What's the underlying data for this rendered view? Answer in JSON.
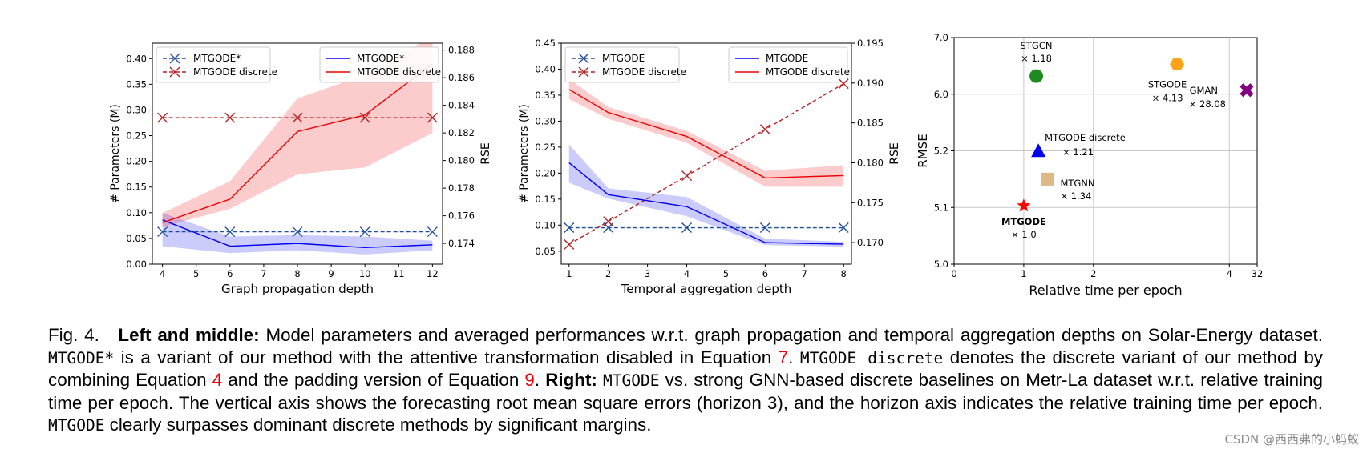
{
  "chart_data": [
    {
      "type": "line",
      "id": "left",
      "xlabel": "Graph propagation depth",
      "ylabel_left": "# Parameters (M)",
      "ylabel_right": "RSE",
      "xlim": [
        3.7,
        12.3
      ],
      "ylim_left": [
        0.0,
        0.43
      ],
      "ylim_right": [
        0.1725,
        0.1885
      ],
      "xticks": [
        4,
        5,
        6,
        7,
        8,
        9,
        10,
        11,
        12
      ],
      "yticks_left": [
        "0.00",
        "0.05",
        "0.10",
        "0.15",
        "0.20",
        "0.25",
        "0.30",
        "0.35",
        "0.40"
      ],
      "yticks_right": [
        "0.174",
        "0.176",
        "0.178",
        "0.180",
        "0.182",
        "0.184",
        "0.186",
        "0.188"
      ],
      "legend_left": [
        {
          "label": "MTGODE*",
          "color": "#1f4e9c",
          "style": "dashed-x"
        },
        {
          "label": "MTGODE discrete",
          "color": "#b22222",
          "style": "dashed-x"
        }
      ],
      "legend_right": [
        {
          "label": "MTGODE*",
          "color": "#0000ee",
          "style": "solid"
        },
        {
          "label": "MTGODE discrete",
          "color": "#ee0000",
          "style": "solid"
        }
      ],
      "series": [
        {
          "name": "MTGODE* params",
          "axis": "left",
          "color": "#1f4e9c",
          "style": "dashed-x",
          "x": [
            4,
            6,
            8,
            10,
            12
          ],
          "values": [
            0.063,
            0.063,
            0.063,
            0.063,
            0.063
          ]
        },
        {
          "name": "MTGODE discrete params",
          "axis": "left",
          "color": "#b22222",
          "style": "dashed-x",
          "x": [
            4,
            6,
            8,
            10,
            12
          ],
          "values": [
            0.285,
            0.285,
            0.285,
            0.285,
            0.285
          ]
        },
        {
          "name": "MTGODE* RSE",
          "axis": "right",
          "color": "#0000ee",
          "style": "solid",
          "x": [
            4,
            6,
            8,
            10,
            12
          ],
          "values": [
            0.1757,
            0.1738,
            0.174,
            0.1737,
            0.1739
          ],
          "lower": [
            0.1738,
            0.1733,
            0.1735,
            0.1732,
            0.1735
          ],
          "upper": [
            0.1762,
            0.1745,
            0.1746,
            0.1745,
            0.1742
          ]
        },
        {
          "name": "MTGODE discrete RSE",
          "axis": "right",
          "color": "#ee0000",
          "style": "solid",
          "x": [
            4,
            6,
            8,
            10,
            12
          ],
          "values": [
            0.1755,
            0.1772,
            0.1821,
            0.1833,
            0.187
          ],
          "lower": [
            0.1752,
            0.1765,
            0.179,
            0.1795,
            0.182
          ],
          "upper": [
            0.1762,
            0.1785,
            0.1845,
            0.1862,
            0.189
          ]
        }
      ]
    },
    {
      "type": "line",
      "id": "middle",
      "xlabel": "Temporal aggregation depth",
      "ylabel_left": "# Parameters (M)",
      "ylabel_right": "RSE",
      "xlim": [
        0.8,
        8.2
      ],
      "ylim_left": [
        0.025,
        0.45
      ],
      "ylim_right": [
        0.1673,
        0.195
      ],
      "xticks": [
        1,
        2,
        3,
        4,
        5,
        6,
        7,
        8
      ],
      "yticks_left": [
        "0.05",
        "0.10",
        "0.15",
        "0.20",
        "0.25",
        "0.30",
        "0.35",
        "0.40",
        "0.45"
      ],
      "yticks_right": [
        "0.170",
        "0.175",
        "0.180",
        "0.185",
        "0.190",
        "0.195"
      ],
      "legend_left": [
        {
          "label": "MTGODE",
          "color": "#1f4e9c",
          "style": "dashed-x"
        },
        {
          "label": "MTGODE discrete",
          "color": "#b22222",
          "style": "dashed-x"
        }
      ],
      "legend_right": [
        {
          "label": "MTGODE",
          "color": "#0000ee",
          "style": "solid"
        },
        {
          "label": "MTGODE discrete",
          "color": "#ee0000",
          "style": "solid"
        }
      ],
      "series": [
        {
          "name": "MTGODE params",
          "axis": "left",
          "color": "#1f4e9c",
          "style": "dashed-x",
          "x": [
            1,
            2,
            4,
            6,
            8
          ],
          "values": [
            0.095,
            0.095,
            0.095,
            0.095,
            0.095
          ]
        },
        {
          "name": "MTGODE discrete params",
          "axis": "left",
          "color": "#b22222",
          "style": "dashed-x",
          "x": [
            1,
            2,
            4,
            6,
            8
          ],
          "values": [
            0.063,
            0.107,
            0.195,
            0.284,
            0.372
          ]
        },
        {
          "name": "MTGODE RSE",
          "axis": "right",
          "color": "#0000ee",
          "style": "solid",
          "x": [
            1,
            2,
            4,
            6,
            8
          ],
          "values": [
            0.18,
            0.176,
            0.1745,
            0.17,
            0.1698
          ],
          "lower": [
            0.1775,
            0.1755,
            0.1733,
            0.1697,
            0.1695
          ],
          "upper": [
            0.1823,
            0.1768,
            0.1757,
            0.1705,
            0.1701
          ]
        },
        {
          "name": "MTGODE discrete RSE",
          "axis": "right",
          "color": "#ee0000",
          "style": "solid",
          "x": [
            1,
            2,
            4,
            6,
            8
          ],
          "values": [
            0.1892,
            0.1863,
            0.1833,
            0.1781,
            0.1784
          ],
          "lower": [
            0.188,
            0.1855,
            0.1825,
            0.177,
            0.177
          ],
          "upper": [
            0.1905,
            0.187,
            0.184,
            0.179,
            0.1797
          ]
        }
      ]
    },
    {
      "type": "scatter",
      "id": "right",
      "xlabel": "Relative time per epoch",
      "ylabel": "RMSE",
      "xtick_labels": [
        "0",
        "1",
        "2",
        "4",
        "32"
      ],
      "ytick_labels": [
        "5.0",
        "5.1",
        "5.2",
        "6.0",
        "7.0"
      ],
      "grid": true,
      "points": [
        {
          "name": "STGCN",
          "ratio": "× 1.18",
          "color": "#1f8a1f",
          "marker": "circle",
          "xpos": 1.18,
          "ypos": 3.32,
          "bold": false
        },
        {
          "name": "STGODE",
          "ratio": "× 4.13",
          "color": "#ffa31a",
          "marker": "hexagon",
          "xpos": 3.2,
          "ypos": 3.53,
          "bold": false
        },
        {
          "name": "GMAN",
          "ratio": "× 28.08",
          "color": "#800080",
          "marker": "x",
          "xpos": 4.2,
          "ypos": 3.07,
          "bold": false
        },
        {
          "name": "MTGODE discrete",
          "ratio": "× 1.21",
          "color": "#0000ee",
          "marker": "triangle",
          "xpos": 1.21,
          "ypos": 1.99,
          "bold": false
        },
        {
          "name": "MTGNN",
          "ratio": "× 1.34",
          "color": "#deb887",
          "marker": "square",
          "xpos": 1.34,
          "ypos": 1.5,
          "bold": false
        },
        {
          "name": "MTGODE",
          "ratio": "× 1.0",
          "color": "#ff0000",
          "marker": "star",
          "xpos": 1.0,
          "ypos": 1.03,
          "bold": true
        }
      ]
    }
  ],
  "caption": {
    "fig_label": "Fig. 4.",
    "bold1": "Left and middle:",
    "t1": " Model parameters and averaged performances w.r.t. graph propagation and temporal aggregation depths on Solar-Energy dataset. ",
    "mono1": "MTGODE*",
    "t2": " is a variant of our method with the attentive transformation disabled in Equation ",
    "ref1": "7",
    "t3": ". ",
    "mono2": "MTGODE discrete",
    "t4": " denotes the discrete variant of our method by combining Equation ",
    "ref2": "4",
    "t5": " and the padding version of Equation ",
    "ref3": "9",
    "t6": ". ",
    "bold2": "Right:",
    "t7": " ",
    "mono3": "MTGODE",
    "t8": " vs. strong GNN-based discrete baselines on Metr-La dataset w.r.t. relative training time per epoch. The vertical axis shows the forecasting root mean square errors (horizon 3), and the horizon axis indicates the relative training time per epoch. ",
    "mono4": "MTGODE",
    "t9": " clearly surpasses dominant discrete methods by significant margins."
  },
  "watermark": "CSDN @西西弗的小蚂蚁"
}
